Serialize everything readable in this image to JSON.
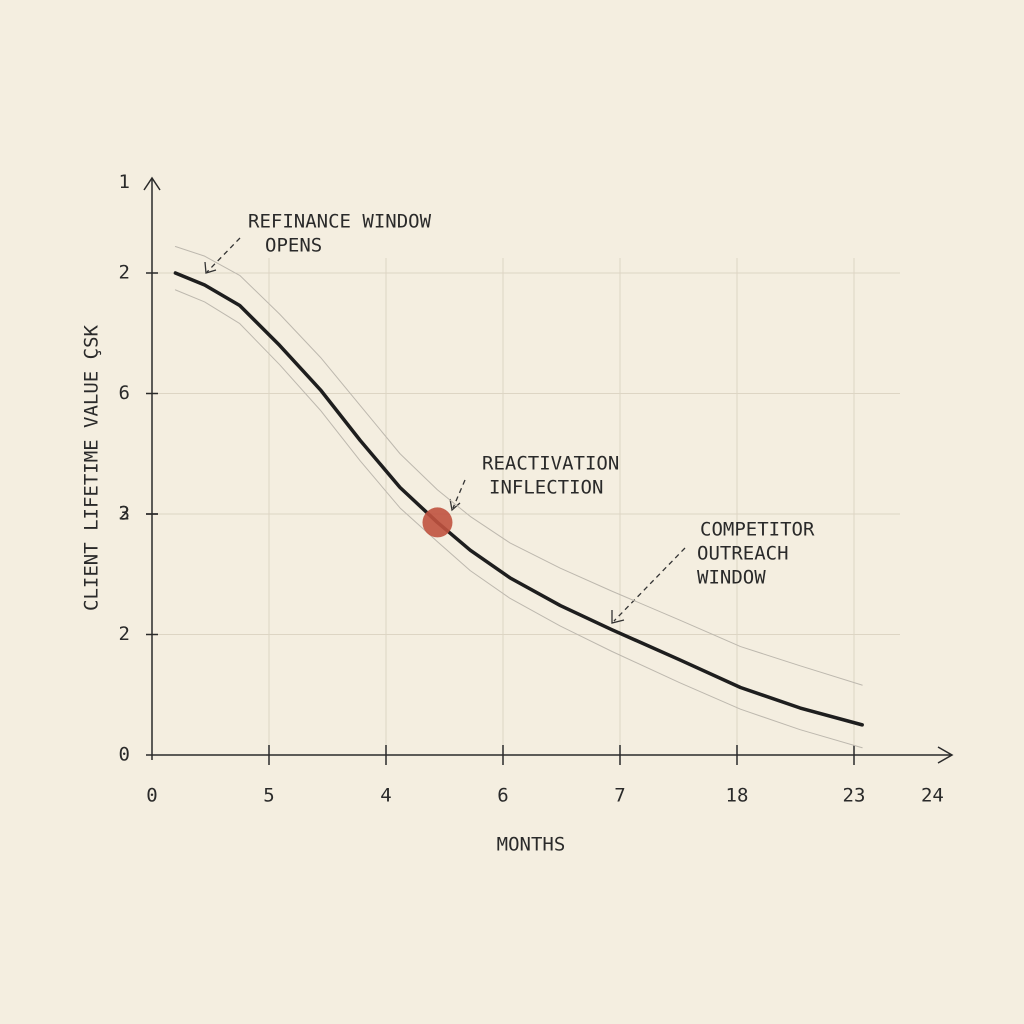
{
  "chart_data": {
    "type": "line",
    "xlabel": "MONTHS",
    "ylabel": "CLIENT LIFETIME VALUE ÇSK",
    "xlim": [
      0,
      6.8
    ],
    "ylim": [
      0,
      4.8
    ],
    "xticks": [
      0,
      {
        "value": 1,
        "label": "5"
      },
      {
        "value": 2,
        "label": "4"
      },
      {
        "value": 3,
        "label": "6"
      },
      {
        "value": 4,
        "label": "7"
      },
      {
        "value": 5,
        "label": "18"
      },
      {
        "value": 6,
        "label": "23"
      },
      {
        "value": 6.67,
        "label": "24"
      }
    ],
    "yticks": [
      0,
      {
        "value": 1,
        "label": "2"
      },
      2,
      {
        "value": 2,
        "label": "3"
      },
      {
        "value": 3,
        "label": "6"
      },
      {
        "value": 4,
        "label": "2"
      },
      {
        "value": 4.75,
        "label": "1"
      }
    ],
    "grid": true,
    "x": [
      0.2,
      0.45,
      0.75,
      1.09,
      1.44,
      1.78,
      2.12,
      2.44,
      2.72,
      3.06,
      3.49,
      3.93,
      4.51,
      5.03,
      5.54,
      6.07
    ],
    "series": [
      {
        "color": "#1e1e1e",
        "values": [
          4.0,
          3.9,
          3.73,
          3.4,
          3.03,
          2.61,
          2.22,
          1.93,
          1.7,
          1.47,
          1.24,
          1.04,
          0.79,
          0.56,
          0.39,
          0.25
        ]
      },
      {
        "color": "#bdb8ae",
        "values": [
          4.22,
          4.14,
          3.98,
          3.66,
          3.3,
          2.9,
          2.5,
          2.2,
          1.98,
          1.76,
          1.55,
          1.36,
          1.12,
          0.9,
          0.74,
          0.58
        ]
      },
      {
        "color": "#bdb8ae",
        "values": [
          3.86,
          3.76,
          3.58,
          3.24,
          2.86,
          2.44,
          2.05,
          1.77,
          1.53,
          1.3,
          1.07,
          0.86,
          0.6,
          0.38,
          0.21,
          0.06
        ]
      }
    ],
    "marker": {
      "x": 2.44,
      "y": 1.93,
      "color": "#c0523f"
    },
    "annotations": [
      {
        "lines": [
          "REFINANCE WINDOW",
          "OPENS"
        ]
      },
      {
        "lines": [
          "REACTIVATION",
          "INFLECTION"
        ]
      },
      {
        "lines": [
          "COMPETITOR",
          "OUTREACH",
          "WINDOW"
        ]
      }
    ]
  }
}
